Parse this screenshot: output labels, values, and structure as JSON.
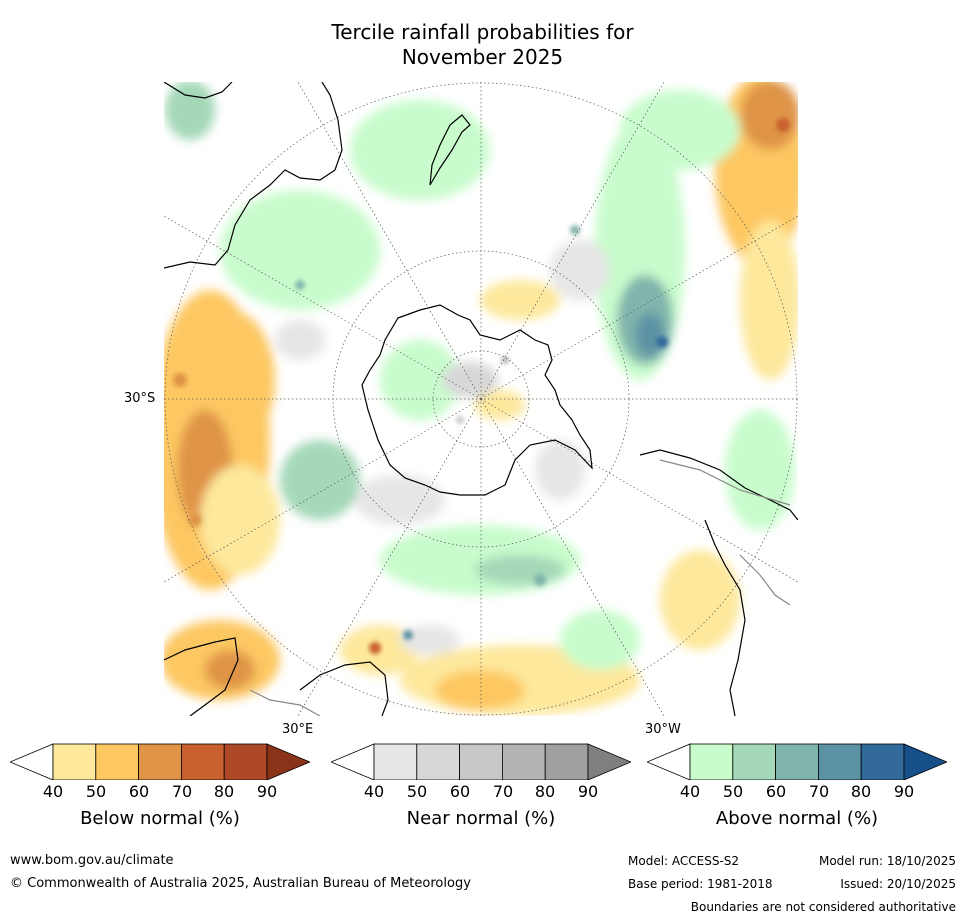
{
  "title": {
    "line1": "Tercile rainfall probabilities for",
    "line2": "November 2025"
  },
  "map": {
    "lat_labels": {
      "south30": "30°S"
    },
    "lon_labels": {
      "east30": "30°E",
      "west30": "30°W"
    },
    "land_outline_color": "#000000",
    "border_color": "#888888"
  },
  "colorbars": [
    {
      "name": "below",
      "label": "Below normal (%)",
      "ticks": [
        "40",
        "50",
        "60",
        "70",
        "80",
        "90"
      ],
      "low_color": "#ffffff",
      "colors": [
        "#fde89c",
        "#fdc862",
        "#df9447",
        "#c9612e",
        "#ad4927"
      ],
      "over_color": "#8a3319"
    },
    {
      "name": "near",
      "label": "Near normal (%)",
      "ticks": [
        "40",
        "50",
        "60",
        "70",
        "80",
        "90"
      ],
      "low_color": "#ffffff",
      "colors": [
        "#e6e6e6",
        "#d7d7d7",
        "#c8c8c8",
        "#b4b4b4",
        "#a0a0a0"
      ],
      "over_color": "#7f7f7f"
    },
    {
      "name": "above",
      "label": "Above normal (%)",
      "ticks": [
        "40",
        "50",
        "60",
        "70",
        "80",
        "90"
      ],
      "low_color": "#ffffff",
      "colors": [
        "#c8fccc",
        "#a4d8b8",
        "#80b4ac",
        "#5b92a4",
        "#336a9c"
      ],
      "over_color": "#174f8a"
    }
  ],
  "footer": {
    "website": "www.bom.gov.au/climate",
    "copyright": "© Commonwealth of Australia 2025, Australian Bureau of Meteorology",
    "model": "Model: ACCESS-S2",
    "base_period": "Base period: 1981-2018",
    "model_run": "Model run: 18/10/2025",
    "issued": "Issued: 20/10/2025",
    "disclaimer": "Boundaries are not considered authoritative"
  }
}
